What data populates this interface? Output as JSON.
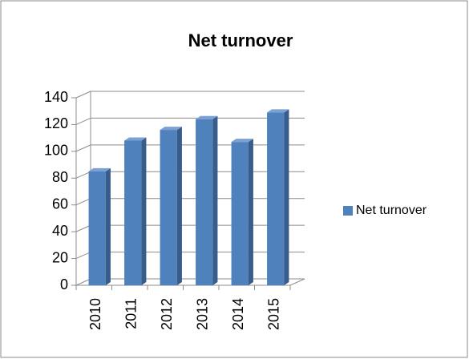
{
  "chart_data": {
    "type": "bar3d",
    "title": "Net turnover",
    "categories": [
      "2010",
      "2011",
      "2012",
      "2013",
      "2014",
      "2015"
    ],
    "series": [
      {
        "name": "Net turnover",
        "color": "#4f81bd",
        "values": [
          85,
          108,
          116,
          124,
          107,
          129
        ]
      }
    ],
    "ylim": [
      0,
      140
    ],
    "yticks": [
      0,
      20,
      40,
      60,
      80,
      100,
      120,
      140
    ],
    "grid": true,
    "legend": "right"
  }
}
